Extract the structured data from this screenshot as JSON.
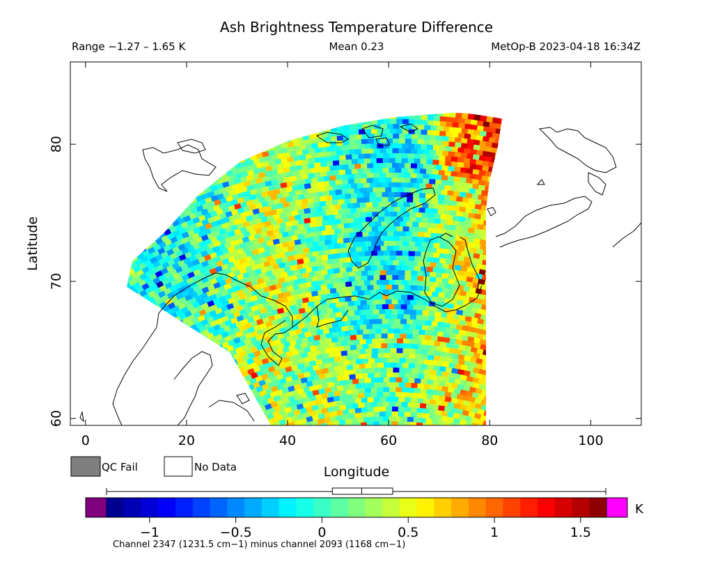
{
  "header": {
    "title": "Ash Brightness Temperature Difference",
    "range": "Range −1.27 – 1.65 K",
    "mean": "Mean 0.23",
    "satellite_time": "MetOp-B 2023-04-18 16:34Z"
  },
  "legend": {
    "qc_fail": "QC Fail",
    "no_data": "No Data",
    "qc_fail_color": "#7f7f7f",
    "no_data_color": "#ffffff"
  },
  "colorbar": {
    "unit": "K",
    "ticks": [
      "−1",
      "−0.5",
      "0",
      "0.5",
      "1",
      "1.5"
    ],
    "tick_values": [
      -1,
      -0.5,
      0,
      0.5,
      1,
      1.5
    ],
    "min": -1.25,
    "max": 1.65,
    "underflow_color": "#800080",
    "overflow_color": "#ff00ff",
    "caption": "Channel 2347 (1231.5 cm−1) minus channel 2093 (1168 cm−1)",
    "range_marker": {
      "min": -1.27,
      "max": 1.65,
      "mean": 0.23,
      "box_low": 0.06,
      "box_high": 0.41
    }
  },
  "chart_data": {
    "type": "heatmap",
    "title": "Ash Brightness Temperature Difference",
    "xlabel": "Longitude",
    "ylabel": "Latitude",
    "xlim": [
      -3,
      110
    ],
    "ylim": [
      59.5,
      86
    ],
    "x_ticks": [
      0,
      20,
      40,
      60,
      80,
      100
    ],
    "y_ticks": [
      60,
      70,
      80
    ],
    "x_tick_labels": [
      "0",
      "20",
      "40",
      "60",
      "80",
      "100"
    ],
    "y_tick_labels": [
      "60",
      "70",
      "80"
    ],
    "value_range": [
      -1.27,
      1.65
    ],
    "mean": 0.23,
    "swath": {
      "lon_min": 10,
      "lon_max": 80,
      "lat_min": 59.5,
      "lat_max": 82.4
    }
  }
}
